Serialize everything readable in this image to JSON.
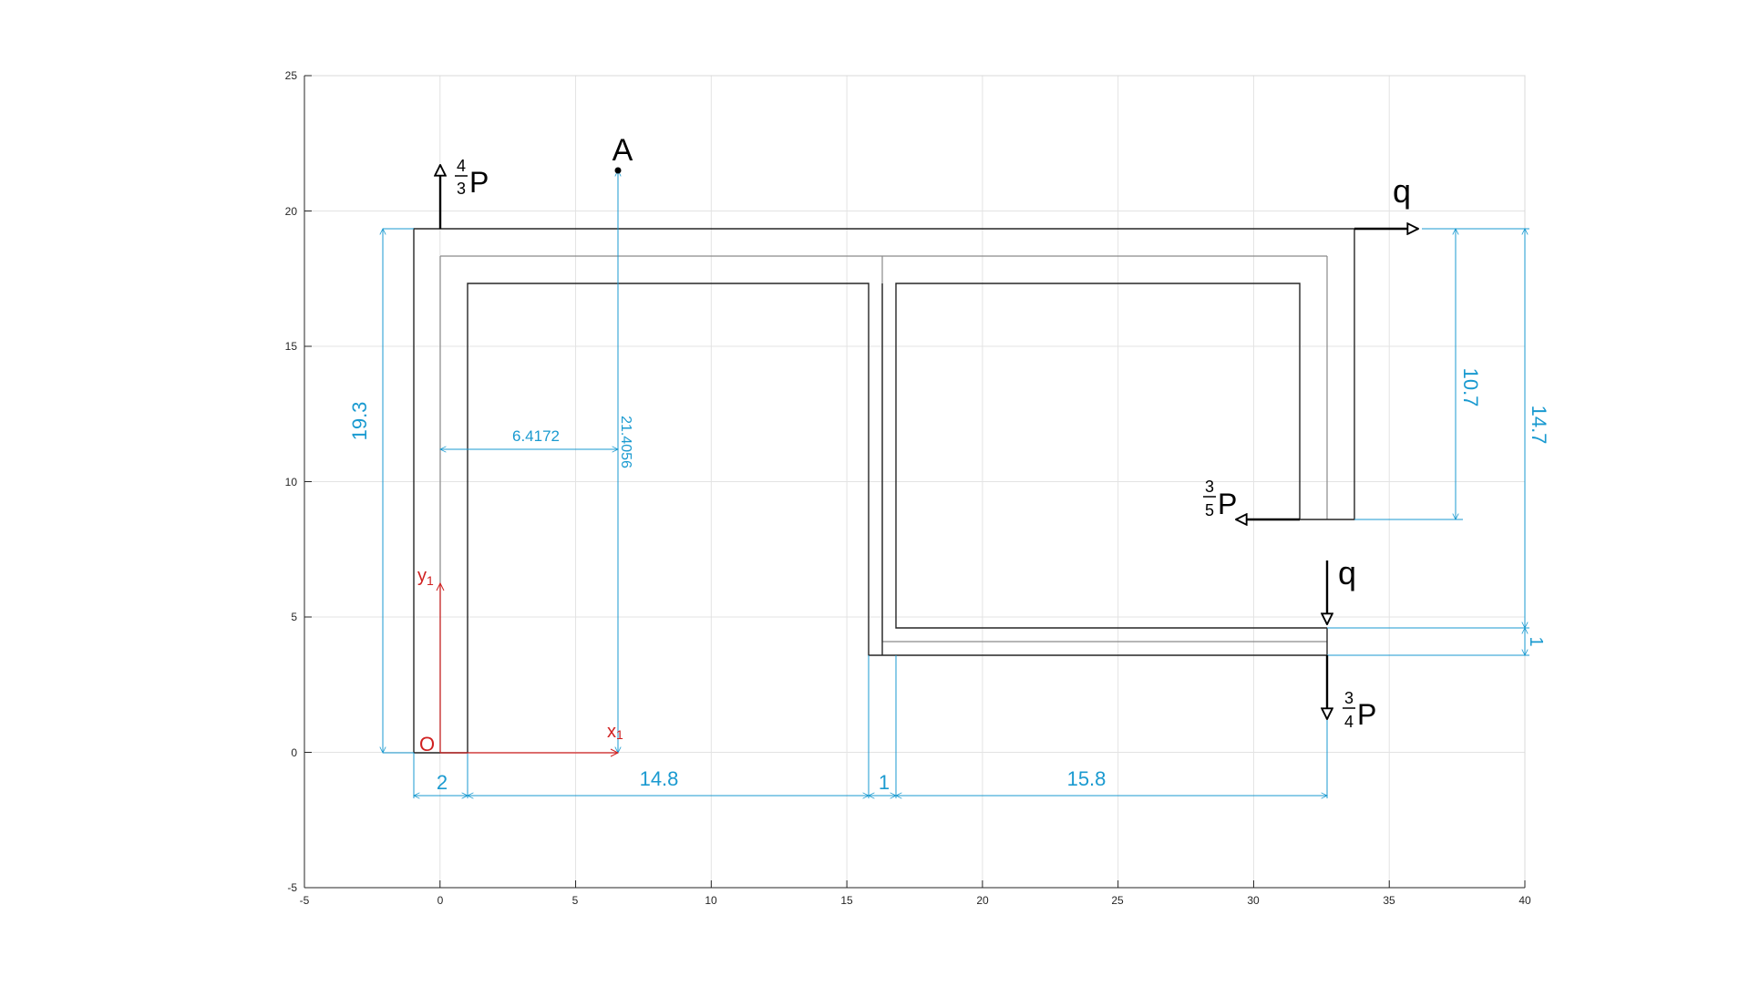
{
  "colors": {
    "structure": "#000000",
    "centerline": "#808080",
    "dimension": "#1a9ad0",
    "axis_local": "#d02020",
    "grid": "#e3e3e3"
  },
  "axes": {
    "x_ticks": [
      "-5",
      "0",
      "5",
      "10",
      "15",
      "20",
      "25",
      "30",
      "35",
      "40"
    ],
    "y_ticks": [
      "-5",
      "0",
      "5",
      "10",
      "15",
      "20",
      "25"
    ],
    "xlim": [
      -5,
      40
    ],
    "ylim": [
      -5,
      25
    ],
    "grid": true
  },
  "labels": {
    "force_top_num": "4",
    "force_top_den": "3",
    "force_top_sym": "P",
    "point_a": "A",
    "q_top": "q",
    "force_mid_num": "3",
    "force_mid_den": "5",
    "force_mid_sym": "P",
    "q_bottom": "q",
    "force_bot_num": "3",
    "force_bot_den": "4",
    "force_bot_sym": "P",
    "origin": "O",
    "x1_main": "x",
    "x1_sub": "1",
    "y1_main": "y",
    "y1_sub": "1"
  },
  "dimensions": {
    "d_19_3": "19.3",
    "d_6_4172": "6.4172",
    "d_21_4056": "21.4056",
    "d_2": "2",
    "d_14_8": "14.8",
    "d_1_bottom": "1",
    "d_15_8": "15.8",
    "d_10_7": "10.7",
    "d_14_7": "14.7",
    "d_1_right": "1"
  }
}
